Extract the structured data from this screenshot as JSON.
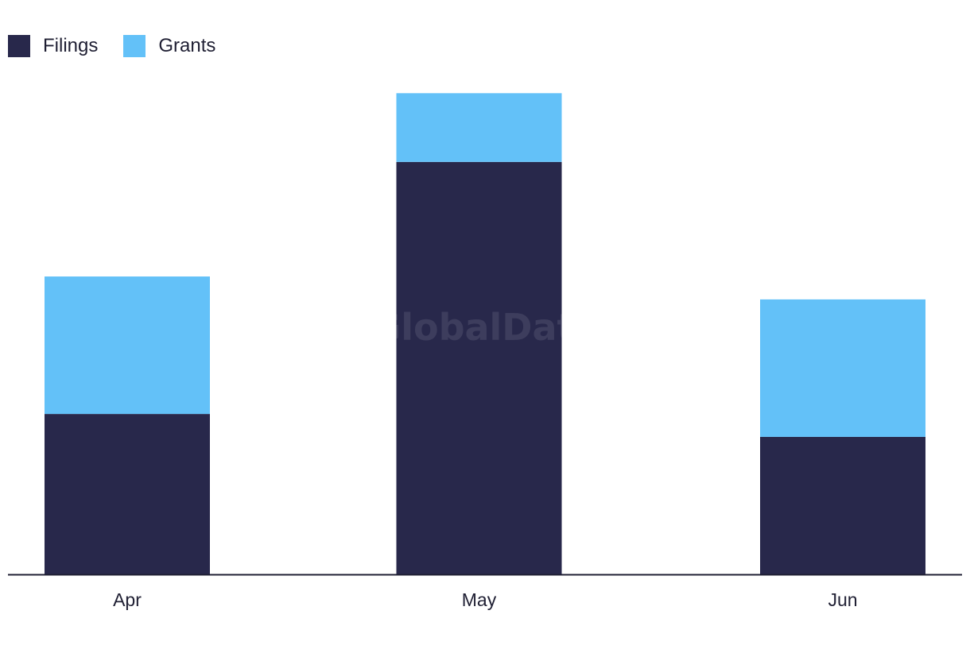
{
  "chart_data": {
    "type": "bar",
    "stacked": true,
    "categories": [
      "Apr",
      "May",
      "Jun"
    ],
    "series": [
      {
        "name": "Filings",
        "values": [
          7,
          18,
          6
        ],
        "color": "#28284b"
      },
      {
        "name": "Grants",
        "values": [
          6,
          3,
          6
        ],
        "color": "#63c1f8"
      }
    ],
    "title": "",
    "xlabel": "",
    "ylabel": "",
    "ylim": [
      0,
      21.6
    ],
    "grid": false,
    "legend_position": "top-left"
  },
  "watermark": "GlobalData"
}
